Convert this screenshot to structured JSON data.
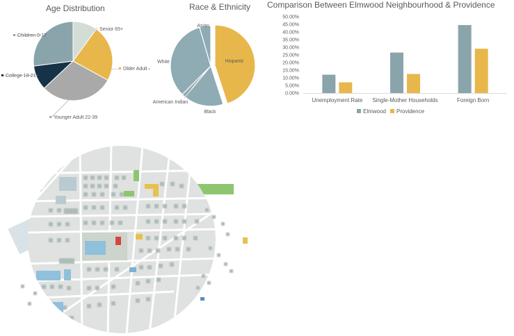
{
  "chart_data": [
    {
      "type": "pie",
      "title": "Age Distribution",
      "categories": [
        "Senior 65+",
        "Older Adult 40-64",
        "Younger Adult 22-39",
        "College 18-21",
        "Children 0-17"
      ],
      "values": [
        10,
        23,
        30,
        10,
        27
      ],
      "colors": [
        "#d3ddd6",
        "#e8b74b",
        "#a9a9a9",
        "#153246",
        "#8aa4ab"
      ],
      "legend": "leader-labels"
    },
    {
      "type": "pie",
      "title": "Race & Ethnicity",
      "categories": [
        "Hispanic",
        "Black",
        "American Indian",
        "White",
        "Asian"
      ],
      "values": [
        45,
        16,
        1.5,
        33,
        4.5
      ],
      "exploded": "Hispanic",
      "colors": [
        "#e8b74b",
        "#8fabb3",
        "#8fabb3",
        "#8fabb3",
        "#8fabb3"
      ],
      "legend": "leader-labels"
    },
    {
      "type": "bar",
      "title": "Comparison Between Elmwood Neighbourhood & Providence",
      "categories": [
        "Unemployment Rate",
        "Single-Mother Households",
        "Foreign Born"
      ],
      "series": [
        {
          "name": "Elmwood",
          "values": [
            12.0,
            26.5,
            44.5
          ],
          "color": "#8aa4ab"
        },
        {
          "name": "Providence",
          "values": [
            7.0,
            12.5,
            29.0
          ],
          "color": "#e8b74b"
        }
      ],
      "ylim": [
        0,
        50
      ],
      "yticks": [
        "0.00%",
        "5.00%",
        "10.00%",
        "15.00%",
        "20.00%",
        "25.00%",
        "30.00%",
        "35.00%",
        "40.00%",
        "45.00%",
        "50.00%"
      ],
      "grid": false,
      "legend": "bottom"
    }
  ]
}
